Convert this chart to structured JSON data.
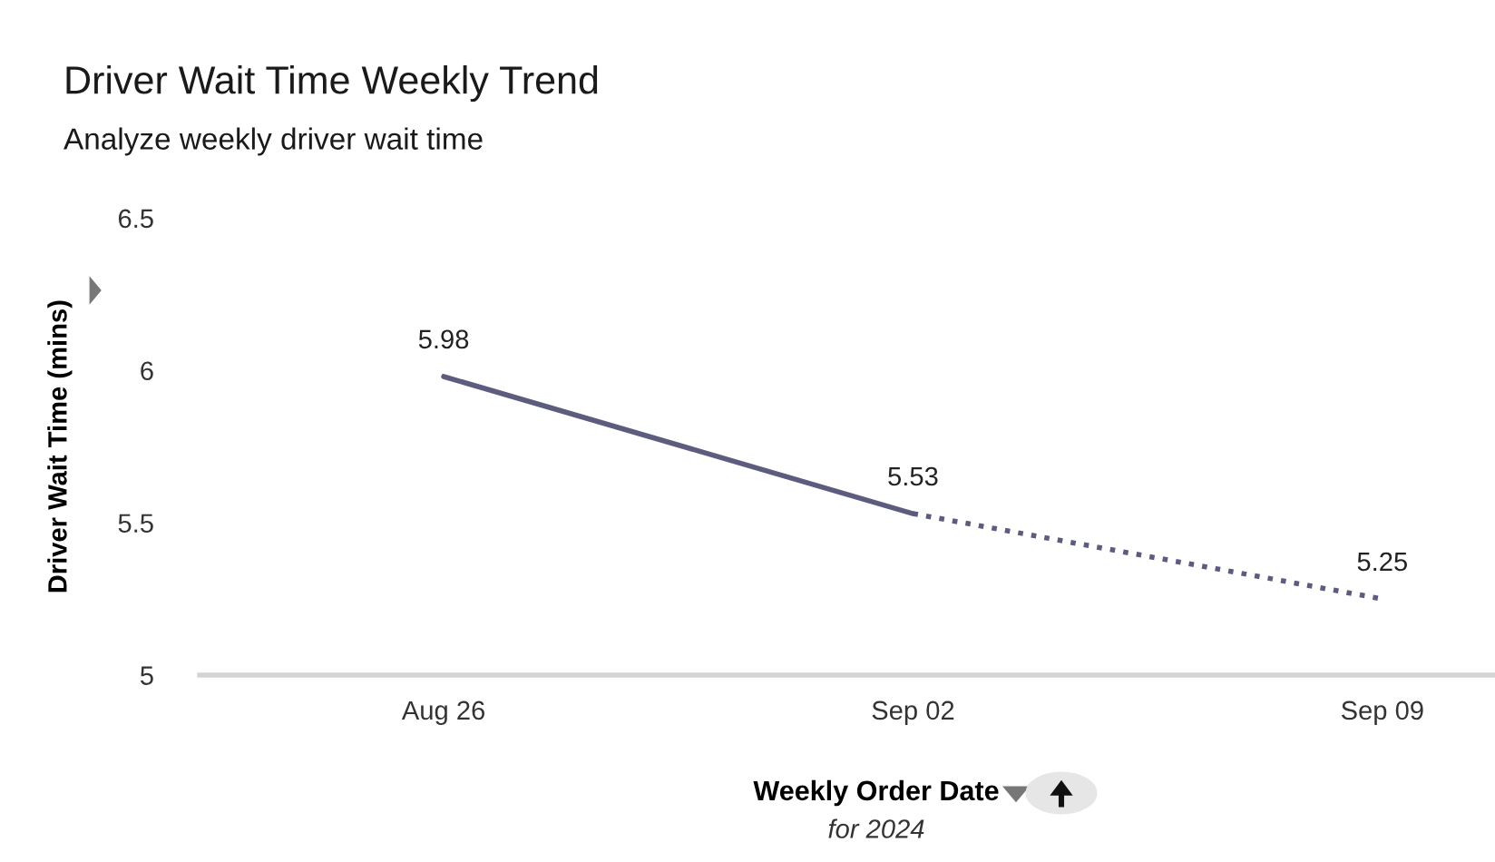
{
  "chart_data": {
    "type": "line",
    "title": "Driver Wait Time Weekly Trend",
    "subtitle": "Analyze weekly driver wait time",
    "xlabel": "Weekly Order Date",
    "ylabel": "Driver Wait Time (mins)",
    "annotations": [
      "for 2024"
    ],
    "categories": [
      "Aug 26",
      "Sep 02",
      "Sep 09"
    ],
    "series": [
      {
        "color": "#5c5c7e",
        "line_style": "solid",
        "values": [
          5.98,
          5.53,
          null
        ],
        "value_labels": [
          "5.98",
          "5.53",
          null
        ]
      },
      {
        "color": "#5c5c7e",
        "line_style": "dotted",
        "values": [
          null,
          5.53,
          5.25
        ],
        "value_labels": [
          null,
          null,
          "5.25"
        ]
      }
    ],
    "ylim": [
      5,
      6.5
    ],
    "yticks": [
      5,
      5.5,
      6,
      6.5
    ],
    "grid": false,
    "legend": false,
    "marker": "none"
  }
}
